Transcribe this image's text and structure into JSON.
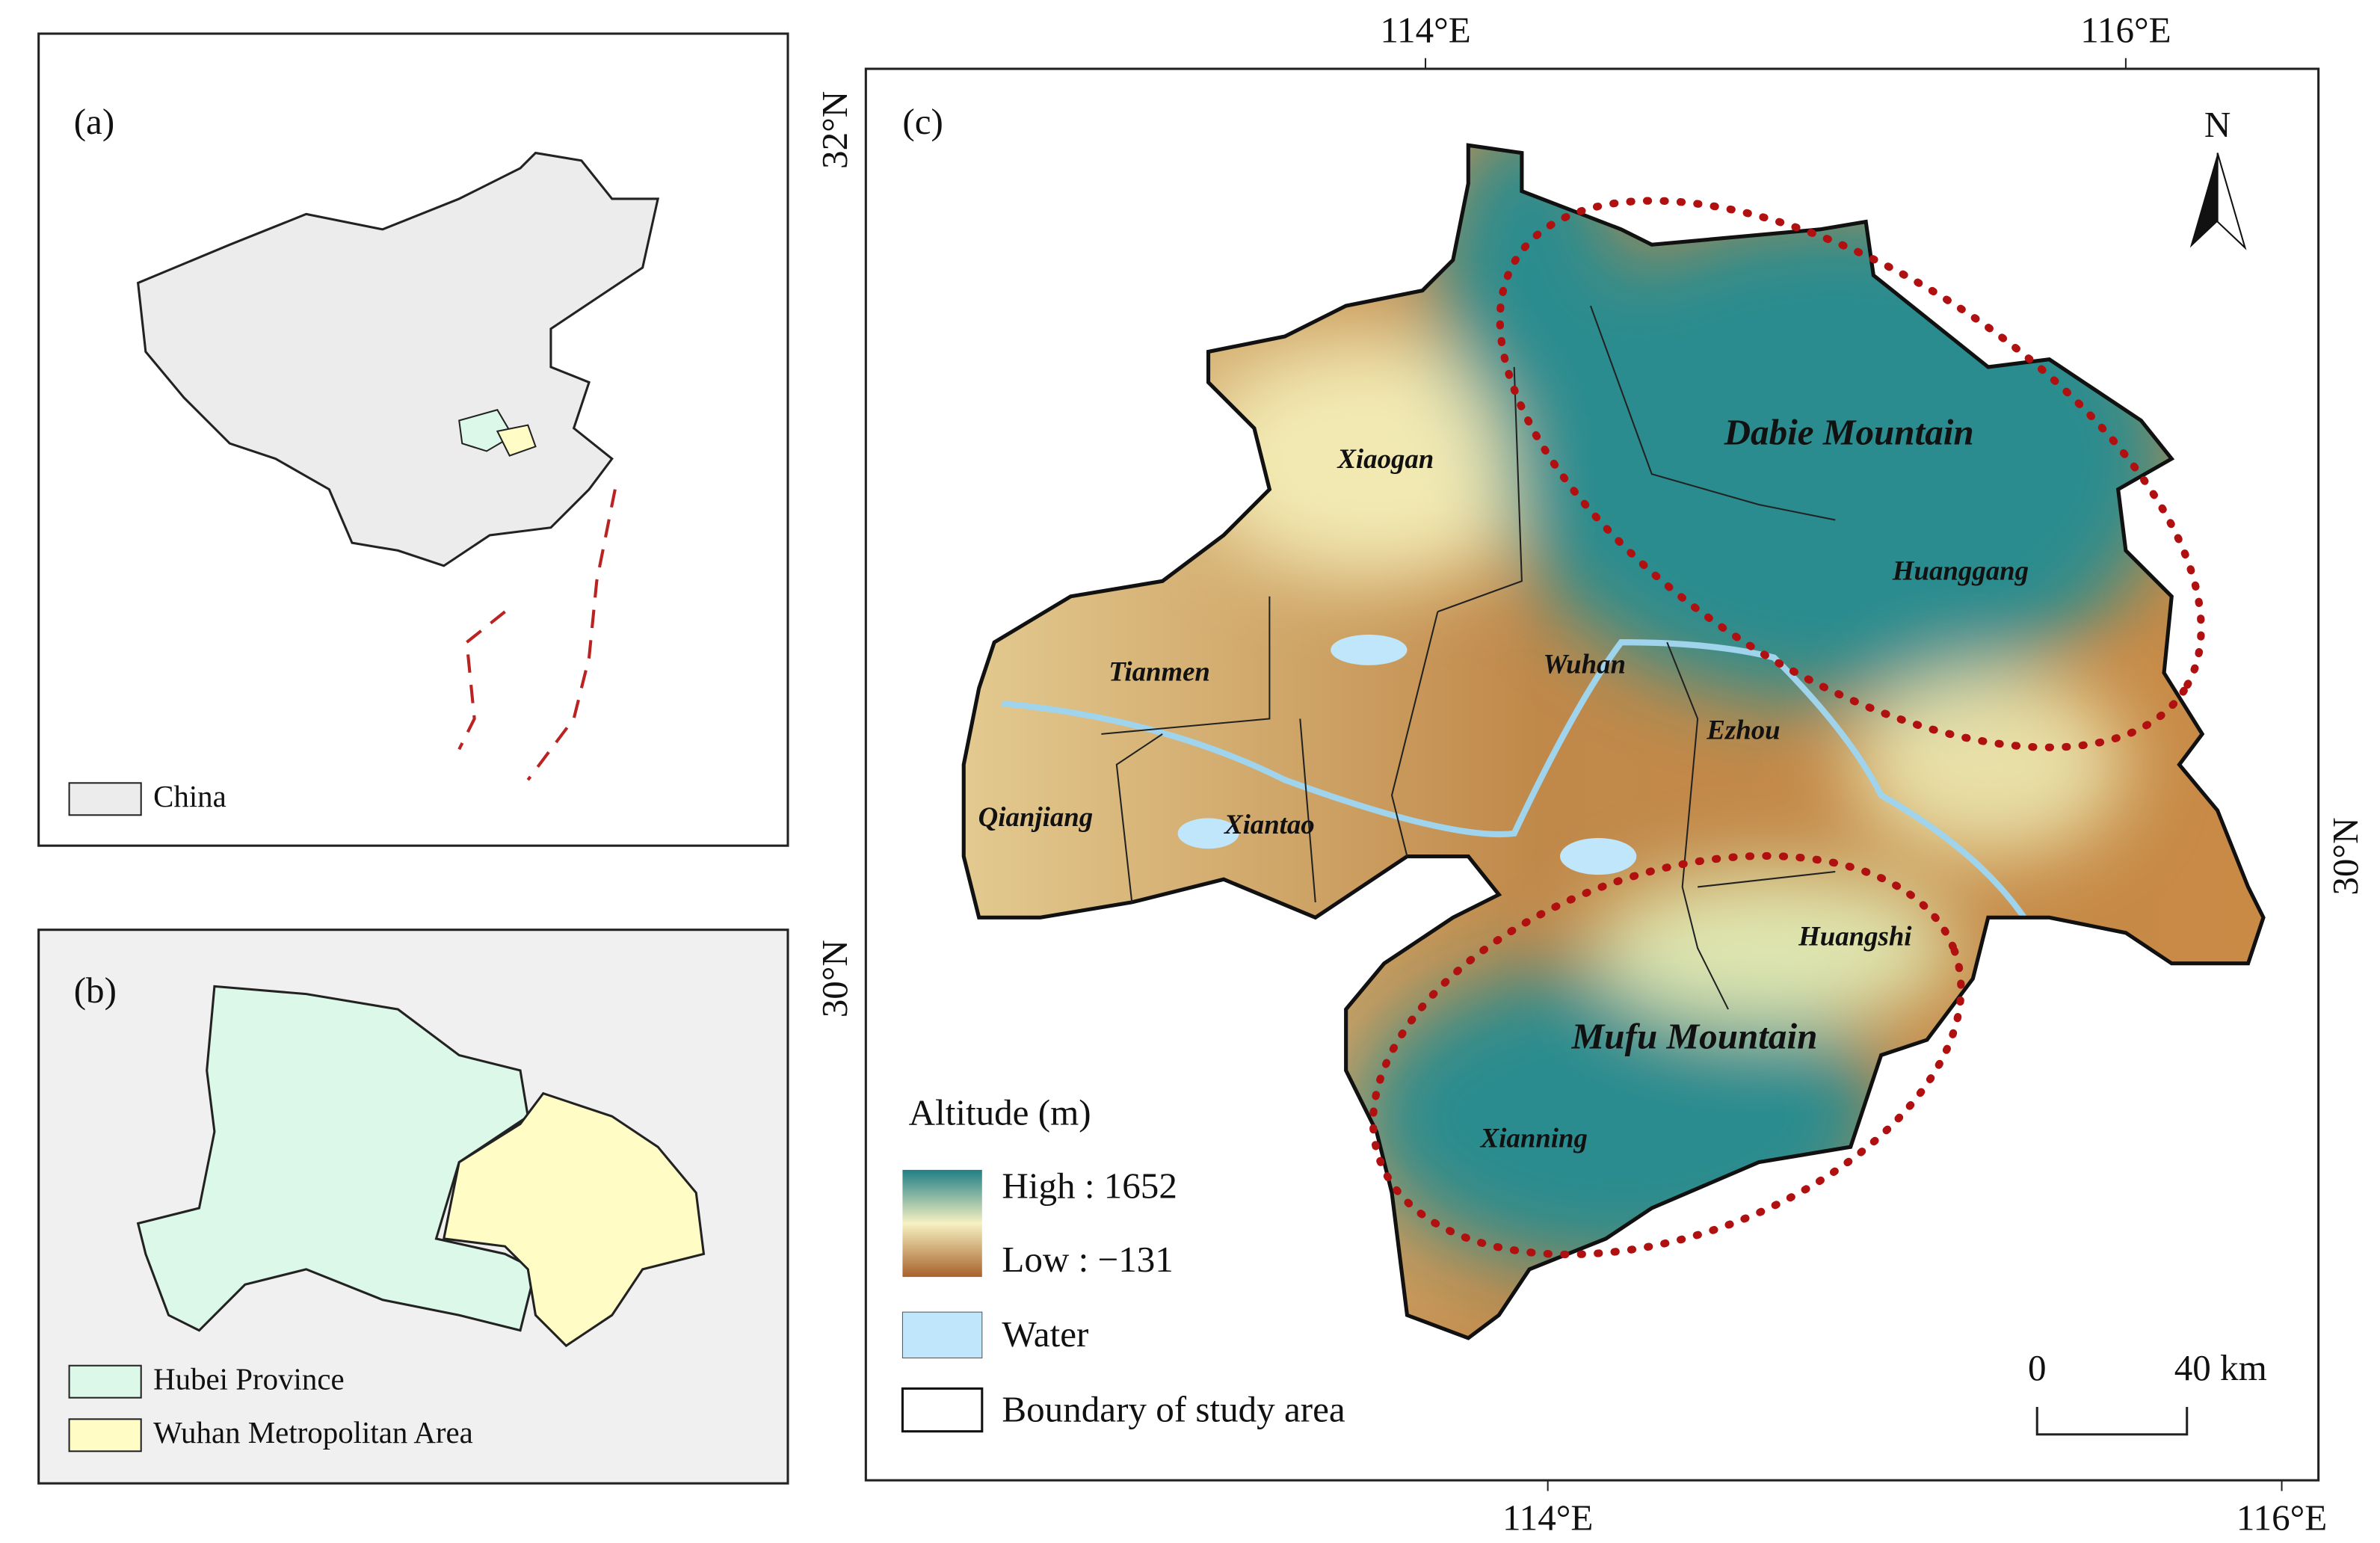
{
  "panels": {
    "a": {
      "label": "(a)",
      "legend": "China"
    },
    "b": {
      "label": "(b)",
      "legend": [
        "Hubei Province",
        "Wuhan Metropolitan Area"
      ]
    },
    "c": {
      "label": "(c)",
      "north": "N",
      "graticule": {
        "top": [
          "114°E",
          "116°E"
        ],
        "bottom": [
          "114°E",
          "116°E"
        ],
        "left": [
          "32°N",
          "30°N"
        ],
        "right": [
          "30°N"
        ]
      },
      "places": [
        "Xiaogan",
        "Tianmen",
        "Qianjiang",
        "Xiantao",
        "Wuhan",
        "Ezhou",
        "Huanggang",
        "Huangshi",
        "Xianning"
      ],
      "mountains": [
        "Dabie Mountain",
        "Mufu Mountain"
      ],
      "legend": {
        "title": "Altitude (m)",
        "high": "High : 1652",
        "low": "Low : −131",
        "water": "Water",
        "boundary": "Boundary of study area"
      },
      "scale_bar": [
        "0",
        "40 km"
      ]
    }
  }
}
